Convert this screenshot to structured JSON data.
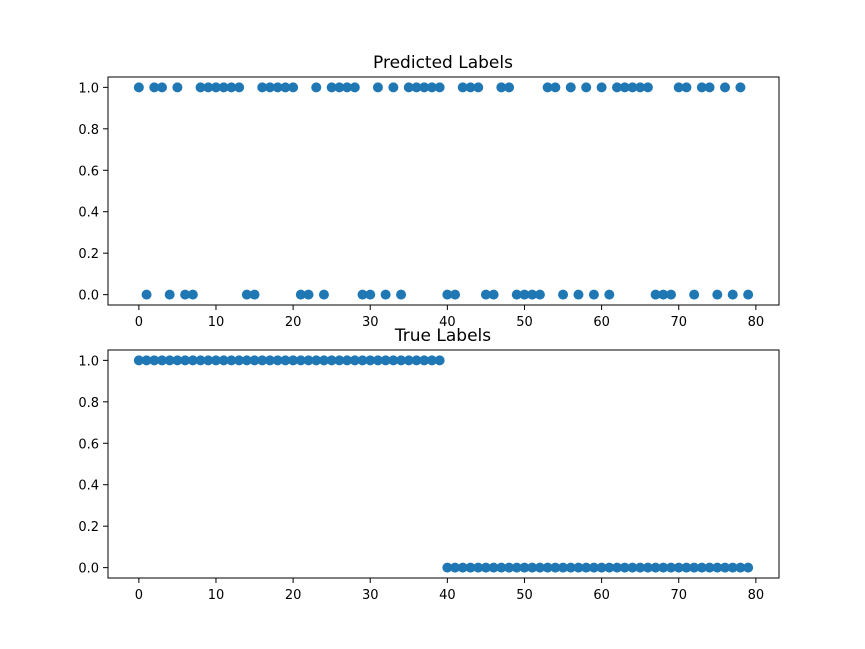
{
  "chart_data": [
    {
      "type": "scatter",
      "title": "Predicted Labels",
      "xlabel": "",
      "ylabel": "",
      "xlim": [
        -4,
        83
      ],
      "ylim": [
        -0.05,
        1.05
      ],
      "xticks": [
        0,
        10,
        20,
        30,
        40,
        50,
        60,
        70,
        80
      ],
      "yticks": [
        0.0,
        0.2,
        0.4,
        0.6,
        0.8,
        1.0
      ],
      "xtick_labels": [
        "0",
        "10",
        "20",
        "30",
        "40",
        "50",
        "60",
        "70",
        "80"
      ],
      "ytick_labels": [
        "0.0",
        "0.2",
        "0.4",
        "0.6",
        "0.8",
        "1.0"
      ],
      "grid": false,
      "marker_color": "#1f77b4",
      "x": [
        0,
        1,
        2,
        3,
        4,
        5,
        6,
        7,
        8,
        9,
        10,
        11,
        12,
        13,
        14,
        15,
        16,
        17,
        18,
        19,
        20,
        21,
        22,
        23,
        24,
        25,
        26,
        27,
        28,
        29,
        30,
        31,
        32,
        33,
        34,
        35,
        36,
        37,
        38,
        39,
        40,
        41,
        42,
        43,
        44,
        45,
        46,
        47,
        48,
        49,
        50,
        51,
        52,
        53,
        54,
        55,
        56,
        57,
        58,
        59,
        60,
        61,
        62,
        63,
        64,
        65,
        66,
        67,
        68,
        69,
        70,
        71,
        72,
        73,
        74,
        75,
        76,
        77,
        78,
        79
      ],
      "y": [
        1,
        0,
        1,
        1,
        0,
        1,
        0,
        0,
        1,
        1,
        1,
        1,
        1,
        1,
        0,
        0,
        1,
        1,
        1,
        1,
        1,
        0,
        0,
        1,
        0,
        1,
        1,
        1,
        1,
        0,
        0,
        1,
        0,
        1,
        0,
        1,
        1,
        1,
        1,
        1,
        0,
        0,
        1,
        1,
        1,
        0,
        0,
        1,
        1,
        0,
        0,
        0,
        0,
        1,
        1,
        0,
        1,
        0,
        1,
        0,
        1,
        0,
        1,
        1,
        1,
        1,
        1,
        0,
        0,
        0,
        1,
        1,
        0,
        1,
        1,
        0,
        1,
        0,
        1,
        0
      ]
    },
    {
      "type": "scatter",
      "title": "True Labels",
      "xlabel": "",
      "ylabel": "",
      "xlim": [
        -4,
        83
      ],
      "ylim": [
        -0.05,
        1.05
      ],
      "xticks": [
        0,
        10,
        20,
        30,
        40,
        50,
        60,
        70,
        80
      ],
      "yticks": [
        0.0,
        0.2,
        0.4,
        0.6,
        0.8,
        1.0
      ],
      "xtick_labels": [
        "0",
        "10",
        "20",
        "30",
        "40",
        "50",
        "60",
        "70",
        "80"
      ],
      "ytick_labels": [
        "0.0",
        "0.2",
        "0.4",
        "0.6",
        "0.8",
        "1.0"
      ],
      "grid": false,
      "marker_color": "#1f77b4",
      "x": [
        0,
        1,
        2,
        3,
        4,
        5,
        6,
        7,
        8,
        9,
        10,
        11,
        12,
        13,
        14,
        15,
        16,
        17,
        18,
        19,
        20,
        21,
        22,
        23,
        24,
        25,
        26,
        27,
        28,
        29,
        30,
        31,
        32,
        33,
        34,
        35,
        36,
        37,
        38,
        39,
        40,
        41,
        42,
        43,
        44,
        45,
        46,
        47,
        48,
        49,
        50,
        51,
        52,
        53,
        54,
        55,
        56,
        57,
        58,
        59,
        60,
        61,
        62,
        63,
        64,
        65,
        66,
        67,
        68,
        69,
        70,
        71,
        72,
        73,
        74,
        75,
        76,
        77,
        78,
        79
      ],
      "y": [
        1,
        1,
        1,
        1,
        1,
        1,
        1,
        1,
        1,
        1,
        1,
        1,
        1,
        1,
        1,
        1,
        1,
        1,
        1,
        1,
        1,
        1,
        1,
        1,
        1,
        1,
        1,
        1,
        1,
        1,
        1,
        1,
        1,
        1,
        1,
        1,
        1,
        1,
        1,
        1,
        0,
        0,
        0,
        0,
        0,
        0,
        0,
        0,
        0,
        0,
        0,
        0,
        0,
        0,
        0,
        0,
        0,
        0,
        0,
        0,
        0,
        0,
        0,
        0,
        0,
        0,
        0,
        0,
        0,
        0,
        0,
        0,
        0,
        0,
        0,
        0,
        0,
        0,
        0,
        0
      ]
    }
  ]
}
